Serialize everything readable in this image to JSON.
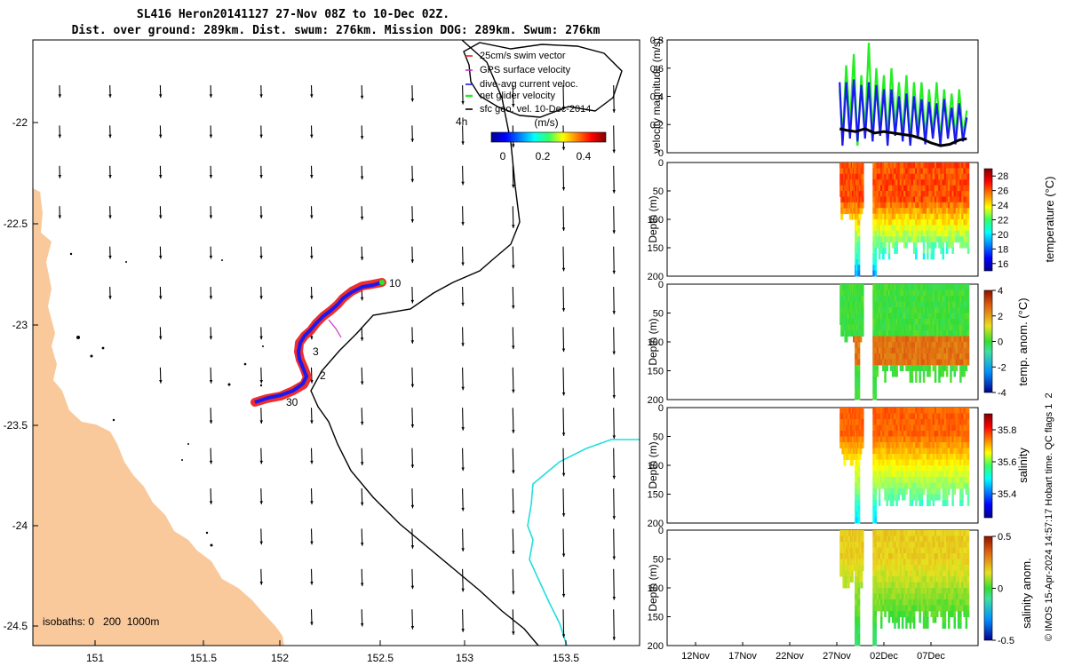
{
  "title": {
    "line1": "SL416 Heron20141127 27-Nov 08Z to 10-Dec 02Z.",
    "line2": "Dist. over ground: 289km. Dist. swum: 276km. Mission DOG: 289km. Swum: 276km"
  },
  "colors": {
    "land": "#f9c99c",
    "shelf_edge": "#000000",
    "isobath_1000": "#22dddd",
    "swim_vector": "#ee2222",
    "gps_vector": "#cc33cc",
    "dive_avg": "#1a1aee",
    "net_velocity": "#22ee22",
    "geo_velocity": "#000000"
  },
  "map": {
    "x_ticks": [
      "151",
      "151.5",
      "152",
      "152.5",
      "153",
      "153.5"
    ],
    "y_ticks": [
      "-22",
      "-22.5",
      "-23",
      "-23.5",
      "-24",
      "-24.5"
    ],
    "isobaths_label": "isobaths: 0   200  1000m",
    "track_labels": [
      "10",
      "3",
      "2",
      "30"
    ],
    "top_label": "4h",
    "legend": [
      {
        "label": "25cm/s swim vector",
        "color_key": "swim_vector"
      },
      {
        "label": "GPS surface velocity",
        "color_key": "gps_vector"
      },
      {
        "label": "dive-avg current veloc.",
        "color_key": "dive_avg"
      },
      {
        "label": "net glider velocity",
        "color_key": "net_velocity"
      },
      {
        "label": "sfc geo. vel. 10-Dec-2014",
        "color_key": "geo_velocity"
      }
    ],
    "colorbar": {
      "label": "(m/s)",
      "ticks": [
        "0",
        "0.2",
        "0.4"
      ],
      "range": [
        0,
        0.5
      ]
    }
  },
  "chart_data": [
    {
      "type": "line",
      "title": "",
      "xlabel": "",
      "ylabel": "velocity magnitude (m/s)",
      "ylim": [
        0,
        0.8
      ],
      "y_ticks": [
        "0",
        "0.2",
        "0.4",
        "0.6",
        "0.8"
      ],
      "series": [
        {
          "name": "net glider velocity",
          "color_key": "net_velocity",
          "x": [
            27.3,
            27.6,
            28,
            28.4,
            28.8,
            29.2,
            29.6,
            30,
            30.4,
            30.8,
            31.2,
            31.6,
            32,
            32.4,
            32.8,
            33.2,
            33.6,
            34,
            34.4,
            34.8,
            35.2,
            35.6,
            36,
            36.4,
            36.8,
            37.2,
            37.6,
            38,
            38.4,
            38.8,
            39.2,
            39.6,
            40,
            40.4,
            40.8
          ],
          "values": [
            0.45,
            0.1,
            0.62,
            0.2,
            0.7,
            0.05,
            0.55,
            0.15,
            0.78,
            0.12,
            0.6,
            0.2,
            0.55,
            0.1,
            0.6,
            0.18,
            0.5,
            0.12,
            0.55,
            0.08,
            0.5,
            0.15,
            0.5,
            0.1,
            0.45,
            0.12,
            0.5,
            0.08,
            0.45,
            0.15,
            0.42,
            0.1,
            0.45,
            0.12,
            0.3
          ]
        },
        {
          "name": "dive-avg current veloc.",
          "color_key": "dive_avg",
          "x": [
            27.3,
            27.6,
            28,
            28.4,
            28.8,
            29.2,
            29.6,
            30,
            30.4,
            30.8,
            31.2,
            31.6,
            32,
            32.4,
            32.8,
            33.2,
            33.6,
            34,
            34.4,
            34.8,
            35.2,
            35.6,
            36,
            36.4,
            36.8,
            37.2,
            37.6,
            38,
            38.4,
            38.8,
            39.2,
            39.6,
            40,
            40.4,
            40.8
          ],
          "values": [
            0.5,
            0.05,
            0.5,
            0.1,
            0.52,
            0.08,
            0.48,
            0.1,
            0.5,
            0.08,
            0.48,
            0.12,
            0.45,
            0.05,
            0.45,
            0.12,
            0.4,
            0.08,
            0.42,
            0.05,
            0.4,
            0.1,
            0.38,
            0.06,
            0.36,
            0.1,
            0.35,
            0.05,
            0.38,
            0.1,
            0.32,
            0.06,
            0.35,
            0.08,
            0.25
          ]
        },
        {
          "name": "sfc geo. vel.",
          "color_key": "geo_velocity",
          "x": [
            27.3,
            28,
            29,
            30,
            31,
            32,
            33,
            34,
            35,
            36,
            37,
            38,
            39,
            40,
            40.8
          ],
          "values": [
            0.17,
            0.16,
            0.15,
            0.17,
            0.14,
            0.15,
            0.14,
            0.13,
            0.12,
            0.1,
            0.07,
            0.05,
            0.06,
            0.09,
            0.1
          ]
        }
      ]
    },
    {
      "type": "heatmap",
      "xlabel": "",
      "ylabel": "Depth (m)",
      "ylim": [
        200,
        0
      ],
      "y_ticks": [
        "0",
        "50",
        "100",
        "150",
        "200"
      ],
      "colorbar_label": "temperature (°C)",
      "colorbar_ticks": [
        "28",
        "26",
        "24",
        "22",
        "20",
        "18",
        "16"
      ],
      "crange": [
        15,
        29
      ]
    },
    {
      "type": "heatmap",
      "xlabel": "",
      "ylabel": "Depth (m)",
      "ylim": [
        200,
        0
      ],
      "y_ticks": [
        "0",
        "50",
        "100",
        "150",
        "200"
      ],
      "colorbar_label": "temp. anom. (°C)",
      "colorbar_ticks": [
        "4",
        "2",
        "0",
        "-2",
        "-4"
      ],
      "crange": [
        -4,
        4
      ]
    },
    {
      "type": "heatmap",
      "xlabel": "",
      "ylabel": "Depth (m)",
      "ylim": [
        200,
        0
      ],
      "y_ticks": [
        "0",
        "50",
        "100",
        "150",
        "200"
      ],
      "colorbar_label": "salinity",
      "colorbar_ticks": [
        "35.8",
        "35.6",
        "35.4"
      ],
      "crange": [
        35.25,
        35.9
      ]
    },
    {
      "type": "heatmap",
      "xlabel": "",
      "ylabel": "Depth (m)",
      "ylim": [
        200,
        0
      ],
      "y_ticks": [
        "0",
        "50",
        "100",
        "150",
        "200"
      ],
      "colorbar_label": "salinity anom.",
      "colorbar_ticks": [
        "0.5",
        "0",
        "-0.5"
      ],
      "crange": [
        -0.5,
        0.5
      ],
      "x_ticks": [
        "12Nov",
        "17Nov",
        "22Nov",
        "27Nov",
        "02Dec",
        "07Dec"
      ]
    }
  ],
  "credit": "© IMOS 15-Apr-2024 14:57:17 Hobart time. QC flags 1  2"
}
